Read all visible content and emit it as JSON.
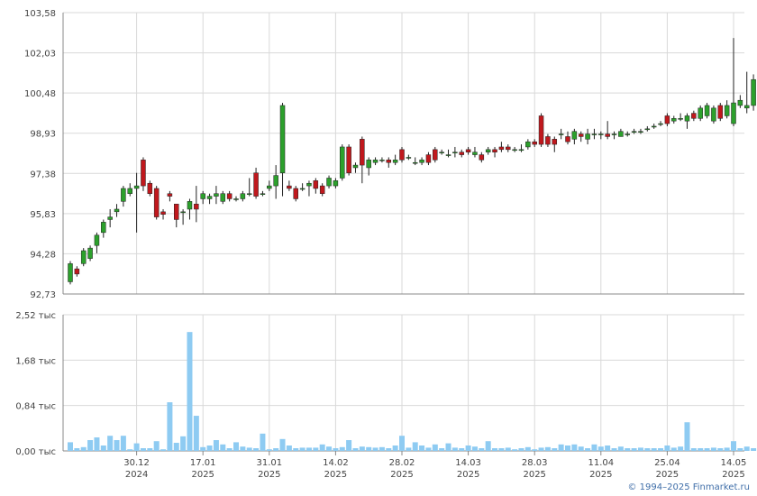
{
  "copyright": "© 1994–2025 Finmarket.ru",
  "colors": {
    "up": "#2ca02c",
    "down": "#c0181d",
    "volume": "#8ecbf2",
    "grid": "#d9d9d9",
    "axis": "#888888"
  },
  "chart_data": [
    {
      "type": "candlestick",
      "y_ticks": [
        "92,73",
        "94,28",
        "95,83",
        "97,38",
        "98,93",
        "100,48",
        "102,03",
        "103,58"
      ],
      "ylim": [
        92.73,
        103.58
      ],
      "grid": true,
      "x_ticks": [
        {
          "date": "30.12",
          "year": "2024",
          "index": 10
        },
        {
          "date": "17.01",
          "year": "2025",
          "index": 20
        },
        {
          "date": "31.01",
          "year": "2025",
          "index": 30
        },
        {
          "date": "14.02",
          "year": "2025",
          "index": 40
        },
        {
          "date": "28.02",
          "year": "2025",
          "index": 50
        },
        {
          "date": "14.03",
          "year": "2025",
          "index": 60
        },
        {
          "date": "28.03",
          "year": "2025",
          "index": 70
        },
        {
          "date": "11.04",
          "year": "2025",
          "index": 80
        },
        {
          "date": "25.04",
          "year": "2025",
          "index": 90
        },
        {
          "date": "14.05",
          "year": "2025",
          "index": 100
        }
      ],
      "candles": [
        [
          93.2,
          93.9,
          93.1,
          94.0
        ],
        [
          93.7,
          93.5,
          93.4,
          93.8
        ],
        [
          93.9,
          94.4,
          93.8,
          94.5
        ],
        [
          94.1,
          94.5,
          94.0,
          94.6
        ],
        [
          94.6,
          95.0,
          94.3,
          95.1
        ],
        [
          95.1,
          95.5,
          94.9,
          95.6
        ],
        [
          95.6,
          95.7,
          95.3,
          96.0
        ],
        [
          95.9,
          96.0,
          95.7,
          96.2
        ],
        [
          96.3,
          96.8,
          96.1,
          96.9
        ],
        [
          96.6,
          96.8,
          96.5,
          97.0
        ],
        [
          96.8,
          96.9,
          95.1,
          97.4
        ],
        [
          97.9,
          96.9,
          96.7,
          98.0
        ],
        [
          97.0,
          96.6,
          96.5,
          97.1
        ],
        [
          96.8,
          95.7,
          95.6,
          96.9
        ],
        [
          95.9,
          95.8,
          95.6,
          96.0
        ],
        [
          96.6,
          96.5,
          96.3,
          96.7
        ],
        [
          96.2,
          95.6,
          95.3,
          96.2
        ],
        [
          95.9,
          95.9,
          95.4,
          96.0
        ],
        [
          96.0,
          96.3,
          95.6,
          96.4
        ],
        [
          96.2,
          96.0,
          95.5,
          96.9
        ],
        [
          96.4,
          96.6,
          96.2,
          96.7
        ],
        [
          96.4,
          96.5,
          96.2,
          96.6
        ],
        [
          96.5,
          96.6,
          96.2,
          96.9
        ],
        [
          96.3,
          96.6,
          96.2,
          96.7
        ],
        [
          96.6,
          96.4,
          96.3,
          96.7
        ],
        [
          96.4,
          96.4,
          96.3,
          96.5
        ],
        [
          96.4,
          96.6,
          96.3,
          96.7
        ],
        [
          96.6,
          96.6,
          96.5,
          97.2
        ],
        [
          97.4,
          96.5,
          96.4,
          97.6
        ],
        [
          96.6,
          96.6,
          96.5,
          96.7
        ],
        [
          96.8,
          96.9,
          96.7,
          97.1
        ],
        [
          96.9,
          97.3,
          96.4,
          97.7
        ],
        [
          97.4,
          100.0,
          96.5,
          100.1
        ],
        [
          96.9,
          96.8,
          96.7,
          97.1
        ],
        [
          96.8,
          96.4,
          96.3,
          96.9
        ],
        [
          96.8,
          96.8,
          96.7,
          97.0
        ],
        [
          96.9,
          97.0,
          96.5,
          97.1
        ],
        [
          97.1,
          96.8,
          96.6,
          97.2
        ],
        [
          96.9,
          96.6,
          96.5,
          97.0
        ],
        [
          96.9,
          97.2,
          96.8,
          97.3
        ],
        [
          96.9,
          97.1,
          96.8,
          97.2
        ],
        [
          97.2,
          98.4,
          97.1,
          98.5
        ],
        [
          98.4,
          97.4,
          97.3,
          98.5
        ],
        [
          97.6,
          97.7,
          97.4,
          97.8
        ],
        [
          98.7,
          97.7,
          97.0,
          98.8
        ],
        [
          97.6,
          97.9,
          97.3,
          98.0
        ],
        [
          97.8,
          97.9,
          97.7,
          98.0
        ],
        [
          97.9,
          97.9,
          97.8,
          98.0
        ],
        [
          97.9,
          97.8,
          97.6,
          98.0
        ],
        [
          97.8,
          97.9,
          97.7,
          98.1
        ],
        [
          98.3,
          97.9,
          97.8,
          98.4
        ],
        [
          98.0,
          98.0,
          97.9,
          98.1
        ],
        [
          97.8,
          97.8,
          97.7,
          98.0
        ],
        [
          97.8,
          97.9,
          97.7,
          98.0
        ],
        [
          98.1,
          97.8,
          97.7,
          98.2
        ],
        [
          98.3,
          97.9,
          97.8,
          98.4
        ],
        [
          98.2,
          98.2,
          98.1,
          98.3
        ],
        [
          98.1,
          98.1,
          98.0,
          98.3
        ],
        [
          98.2,
          98.2,
          98.0,
          98.4
        ],
        [
          98.2,
          98.1,
          98.0,
          98.3
        ],
        [
          98.3,
          98.2,
          98.1,
          98.4
        ],
        [
          98.1,
          98.2,
          98.0,
          98.4
        ],
        [
          98.1,
          97.9,
          97.8,
          98.2
        ],
        [
          98.2,
          98.3,
          98.1,
          98.4
        ],
        [
          98.3,
          98.2,
          98.0,
          98.4
        ],
        [
          98.4,
          98.3,
          98.2,
          98.6
        ],
        [
          98.4,
          98.3,
          98.2,
          98.5
        ],
        [
          98.3,
          98.3,
          98.2,
          98.4
        ],
        [
          98.3,
          98.3,
          98.2,
          98.5
        ],
        [
          98.4,
          98.6,
          98.3,
          98.7
        ],
        [
          98.6,
          98.5,
          98.4,
          98.7
        ],
        [
          99.6,
          98.5,
          98.4,
          99.7
        ],
        [
          98.8,
          98.5,
          98.4,
          98.9
        ],
        [
          98.7,
          98.5,
          98.2,
          98.8
        ],
        [
          98.9,
          98.9,
          98.7,
          99.1
        ],
        [
          98.8,
          98.6,
          98.5,
          99.0
        ],
        [
          98.7,
          99.0,
          98.5,
          99.1
        ],
        [
          98.9,
          98.8,
          98.6,
          99.0
        ],
        [
          98.7,
          98.9,
          98.5,
          99.1
        ],
        [
          98.9,
          98.9,
          98.7,
          99.1
        ],
        [
          98.9,
          98.9,
          98.7,
          99.0
        ],
        [
          98.9,
          98.8,
          98.7,
          99.4
        ],
        [
          98.9,
          98.9,
          98.7,
          99.0
        ],
        [
          98.8,
          99.0,
          98.8,
          99.1
        ],
        [
          98.9,
          98.9,
          98.8,
          99.0
        ],
        [
          99.0,
          99.0,
          98.9,
          99.1
        ],
        [
          99.0,
          99.0,
          98.9,
          99.1
        ],
        [
          99.1,
          99.1,
          99.0,
          99.2
        ],
        [
          99.2,
          99.2,
          99.1,
          99.3
        ],
        [
          99.3,
          99.3,
          99.2,
          99.4
        ],
        [
          99.6,
          99.3,
          99.2,
          99.7
        ],
        [
          99.4,
          99.5,
          99.3,
          99.6
        ],
        [
          99.5,
          99.5,
          99.4,
          99.7
        ],
        [
          99.4,
          99.6,
          99.1,
          99.7
        ],
        [
          99.7,
          99.5,
          99.4,
          99.8
        ],
        [
          99.5,
          99.9,
          99.4,
          100.0
        ],
        [
          99.6,
          100.0,
          99.5,
          100.1
        ],
        [
          99.4,
          99.9,
          99.3,
          100.0
        ],
        [
          100.0,
          99.5,
          99.4,
          100.1
        ],
        [
          99.6,
          100.0,
          99.5,
          100.2
        ],
        [
          99.3,
          100.1,
          99.2,
          102.6
        ],
        [
          100.0,
          100.2,
          99.9,
          100.4
        ],
        [
          99.9,
          100.0,
          99.7,
          101.3
        ],
        [
          100.0,
          101.0,
          99.8,
          101.2
        ],
        [
          100.1,
          102.0,
          100.0,
          102.0
        ],
        [
          102.0,
          102.0,
          101.9,
          102.1
        ],
        [
          101.1,
          100.6,
          100.3,
          101.2
        ]
      ]
    },
    {
      "type": "bar",
      "title": "volume",
      "y_ticks": [
        "0,00 тыс",
        "0,84 тыс",
        "1,68 тыс",
        "2,52 тыс"
      ],
      "ylim": [
        0,
        2.52
      ],
      "grid": true,
      "values": [
        0.16,
        0.05,
        0.07,
        0.2,
        0.25,
        0.1,
        0.28,
        0.2,
        0.28,
        0.03,
        0.14,
        0.05,
        0.05,
        0.18,
        0.03,
        0.9,
        0.15,
        0.27,
        2.2,
        0.65,
        0.07,
        0.1,
        0.2,
        0.12,
        0.05,
        0.16,
        0.08,
        0.06,
        0.05,
        0.32,
        0.03,
        0.05,
        0.22,
        0.1,
        0.05,
        0.06,
        0.06,
        0.06,
        0.12,
        0.08,
        0.05,
        0.07,
        0.2,
        0.05,
        0.08,
        0.07,
        0.06,
        0.07,
        0.05,
        0.1,
        0.28,
        0.06,
        0.16,
        0.1,
        0.06,
        0.12,
        0.05,
        0.14,
        0.06,
        0.05,
        0.1,
        0.08,
        0.05,
        0.18,
        0.05,
        0.05,
        0.06,
        0.03,
        0.05,
        0.07,
        0.03,
        0.06,
        0.07,
        0.05,
        0.12,
        0.1,
        0.12,
        0.08,
        0.05,
        0.12,
        0.08,
        0.1,
        0.05,
        0.08,
        0.05,
        0.05,
        0.06,
        0.05,
        0.05,
        0.05,
        0.1,
        0.06,
        0.08,
        0.53,
        0.05,
        0.05,
        0.05,
        0.06,
        0.05,
        0.06,
        0.18,
        0.05,
        0.08,
        0.05,
        0.05,
        0.05,
        0.05
      ]
    }
  ]
}
